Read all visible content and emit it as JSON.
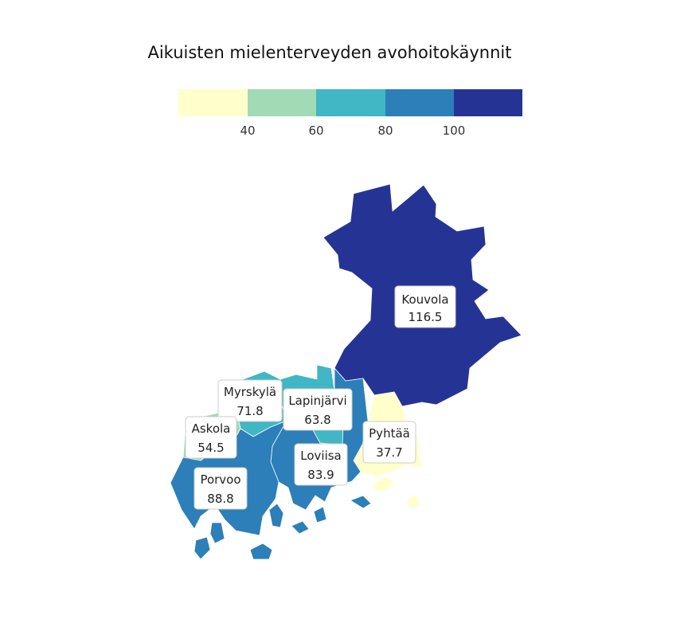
{
  "map": {
    "title": "Aikuisten mielenterveyden avohoitokäynnit",
    "legend": {
      "colors": [
        "#ffffcc",
        "#a1dab4",
        "#41b6c4",
        "#2c7fb8",
        "#253494"
      ],
      "ticks": [
        "40",
        "60",
        "80",
        "100"
      ]
    },
    "regions": [
      {
        "name": "Kouvola",
        "value": "116.5",
        "color": "#253494"
      },
      {
        "name": "Myrskylä",
        "value": "71.8",
        "color": "#41b6c4"
      },
      {
        "name": "Lapinjärvi",
        "value": "63.8",
        "color": "#41b6c4"
      },
      {
        "name": "Askola",
        "value": "54.5",
        "color": "#a1dab4"
      },
      {
        "name": "Pyhtää",
        "value": "37.7",
        "color": "#ffffcc"
      },
      {
        "name": "Loviisa",
        "value": "83.9",
        "color": "#2c7fb8"
      },
      {
        "name": "Porvoo",
        "value": "88.8",
        "color": "#2c7fb8"
      }
    ]
  }
}
